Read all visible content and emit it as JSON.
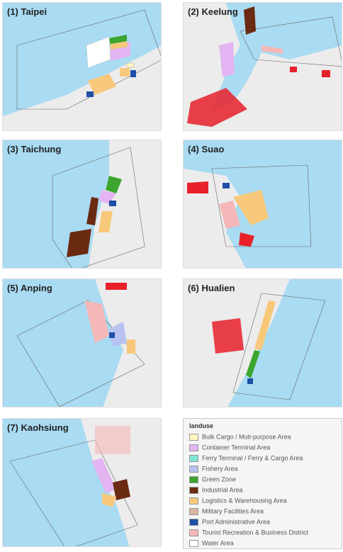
{
  "panels": [
    {
      "title": "(1) Taipei"
    },
    {
      "title": "(2) Keelung"
    },
    {
      "title": "(3) Taichung"
    },
    {
      "title": "(4) Suao"
    },
    {
      "title": "(5) Anping"
    },
    {
      "title": "(6) Hualien"
    },
    {
      "title": "(7) Kaohsiung"
    }
  ],
  "legend": {
    "title": "landuse",
    "items": [
      {
        "label": "Bulk Cargo / Muti-purpose Area",
        "color": "#fff7bf"
      },
      {
        "label": "Container Terminal Area",
        "color": "#e2b5f2"
      },
      {
        "label": "Ferry Terminal / Ferry & Cargo Area",
        "color": "#7fe6d6"
      },
      {
        "label": "Fishery Area",
        "color": "#b9c3f2"
      },
      {
        "label": "Green Zone",
        "color": "#3ba52e"
      },
      {
        "label": "Industrial Area",
        "color": "#6b2a12"
      },
      {
        "label": "Logistics & Warehousing Area",
        "color": "#f7c87a"
      },
      {
        "label": "Military Facilities Area",
        "color": "#d9b49e"
      },
      {
        "label": "Port Administrative Area",
        "color": "#1f4fa6"
      },
      {
        "label": "Tourist Recreation & Business District",
        "color": "#f5b7b7"
      },
      {
        "label": "Water Area",
        "color": "#ffffff"
      }
    ]
  }
}
